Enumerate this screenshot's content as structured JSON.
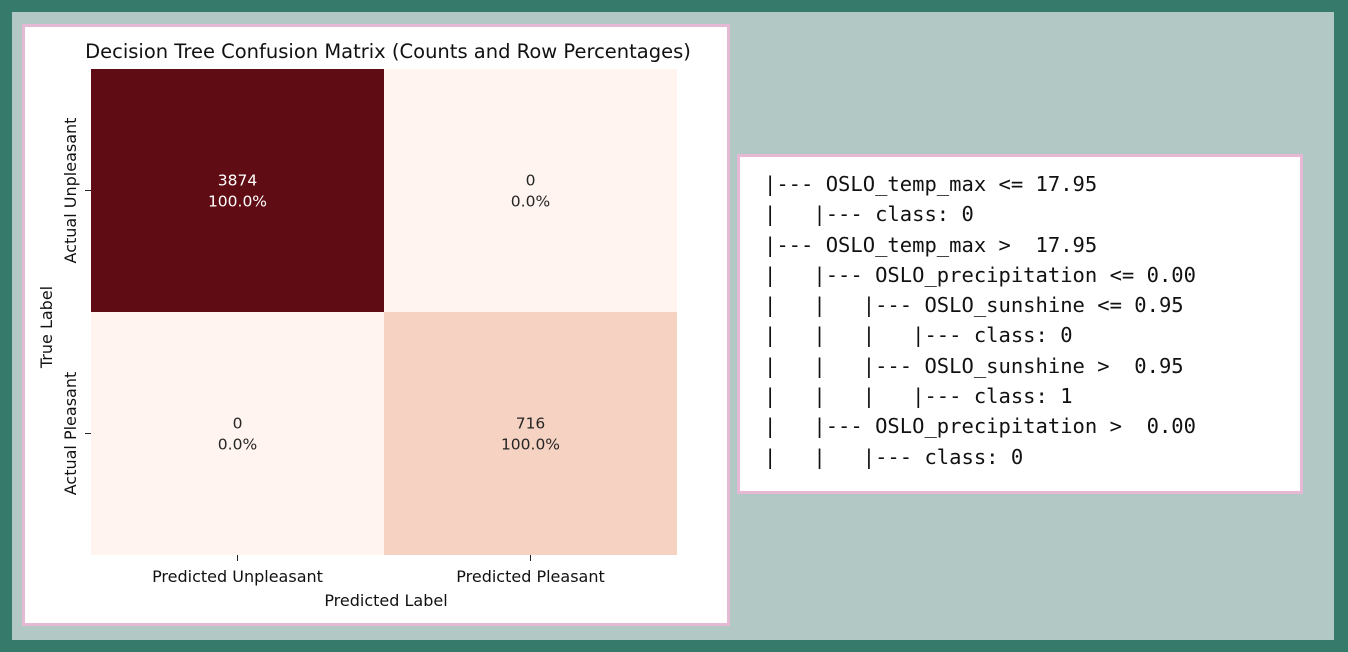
{
  "chart_data": {
    "type": "heatmap",
    "title": "Decision Tree Confusion Matrix (Counts and Row Percentages)",
    "xlabel": "Predicted Label",
    "ylabel": "True Label",
    "x_categories": [
      "Predicted Unpleasant",
      "Predicted Pleasant"
    ],
    "y_categories": [
      "Actual Unpleasant",
      "Actual Pleasant"
    ],
    "counts": [
      [
        3874,
        0
      ],
      [
        0,
        716
      ]
    ],
    "row_percentages": [
      [
        "100.0%",
        "0.0%"
      ],
      [
        "0.0%",
        "100.0%"
      ]
    ],
    "cell_labels": [
      [
        "3874",
        "0"
      ],
      [
        "0",
        "716"
      ]
    ],
    "cell_colors": [
      [
        "#5f0c14",
        "#fff4ef"
      ],
      [
        "#fff4ef",
        "#f5d2c1"
      ]
    ],
    "text_colors": [
      [
        "#ffffff",
        "#262626"
      ],
      [
        "#262626",
        "#262626"
      ]
    ],
    "colormap": "Reds",
    "colorbar": false
  },
  "tree_text": "|--- OSLO_temp_max <= 17.95\n|   |--- class: 0\n|--- OSLO_temp_max >  17.95\n|   |--- OSLO_precipitation <= 0.00\n|   |   |--- OSLO_sunshine <= 0.95\n|   |   |   |--- class: 0\n|   |   |--- OSLO_sunshine >  0.95\n|   |   |   |--- class: 1\n|   |--- OSLO_precipitation >  0.00\n|   |   |--- class: 0"
}
